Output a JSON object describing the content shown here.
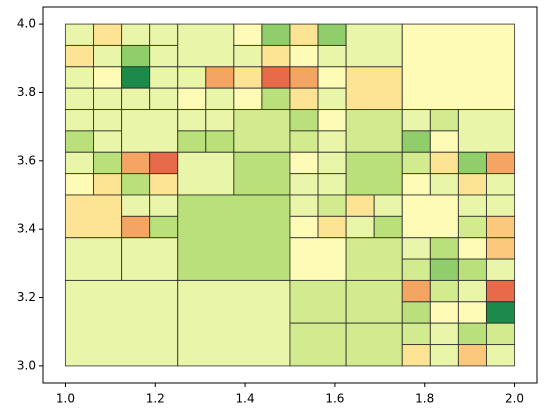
{
  "chart_data": {
    "type": "quadtree",
    "xlim": [
      0.95,
      2.05
    ],
    "ylim": [
      2.95,
      4.05
    ],
    "xticks": [
      {
        "value": 1.0,
        "label": "1.0"
      },
      {
        "value": 1.2,
        "label": "1.2"
      },
      {
        "value": 1.4,
        "label": "1.4"
      },
      {
        "value": 1.6,
        "label": "1.6"
      },
      {
        "value": 1.8,
        "label": "1.8"
      },
      {
        "value": 2.0,
        "label": "2.0"
      }
    ],
    "yticks": [
      {
        "value": 3.0,
        "label": "3.0"
      },
      {
        "value": 3.2,
        "label": "3.2"
      },
      {
        "value": 3.4,
        "label": "3.4"
      },
      {
        "value": 3.6,
        "label": "3.6"
      },
      {
        "value": 3.8,
        "label": "3.8"
      },
      {
        "value": 4.0,
        "label": "4.0"
      }
    ],
    "cells": [
      [
        1,
        3.9375,
        0.0625,
        "#e9f5a9"
      ],
      [
        1.0625,
        3.9375,
        0.0625,
        "#fde495"
      ],
      [
        1,
        3.875,
        0.0625,
        "#fde495"
      ],
      [
        1.0625,
        3.875,
        0.0625,
        "#e9f5a9"
      ],
      [
        1.125,
        3.9375,
        0.0625,
        "#e9f5a9"
      ],
      [
        1.1875,
        3.9375,
        0.0625,
        "#e9f5a9"
      ],
      [
        1.125,
        3.875,
        0.0625,
        "#8fce6b"
      ],
      [
        1.1875,
        3.875,
        0.0625,
        "#e9f5a9"
      ],
      [
        1,
        3.8125,
        0.0625,
        "#e9f5a9"
      ],
      [
        1.0625,
        3.8125,
        0.0625,
        "#fefbb6"
      ],
      [
        1,
        3.75,
        0.0625,
        "#e9f5a9"
      ],
      [
        1.0625,
        3.75,
        0.0625,
        "#e9f5a9"
      ],
      [
        1.125,
        3.8125,
        0.0625,
        "#1b8a4b"
      ],
      [
        1.1875,
        3.8125,
        0.0625,
        "#e9f5a9"
      ],
      [
        1.125,
        3.75,
        0.0625,
        "#e9f5a9"
      ],
      [
        1.1875,
        3.75,
        0.0625,
        "#e9f5a9"
      ],
      [
        1.25,
        3.875,
        0.125,
        "#e9f5a9"
      ],
      [
        1.375,
        3.9375,
        0.0625,
        "#fefbb6"
      ],
      [
        1.4375,
        3.9375,
        0.0625,
        "#8fce6b"
      ],
      [
        1.375,
        3.875,
        0.0625,
        "#e9f5a9"
      ],
      [
        1.4375,
        3.875,
        0.0625,
        "#fde495"
      ],
      [
        1.25,
        3.8125,
        0.0625,
        "#e9f5a9"
      ],
      [
        1.3125,
        3.8125,
        0.0625,
        "#f4a463"
      ],
      [
        1.25,
        3.75,
        0.0625,
        "#fefbb6"
      ],
      [
        1.3125,
        3.75,
        0.0625,
        "#e9f5a9"
      ],
      [
        1.375,
        3.8125,
        0.0625,
        "#fde495"
      ],
      [
        1.4375,
        3.8125,
        0.0625,
        "#e76b4b"
      ],
      [
        1.375,
        3.75,
        0.0625,
        "#fefbb6"
      ],
      [
        1.4375,
        3.75,
        0.0625,
        "#b9e07b"
      ],
      [
        1.5,
        3.9375,
        0.0625,
        "#fde495"
      ],
      [
        1.5625,
        3.9375,
        0.0625,
        "#8fce6b"
      ],
      [
        1.5,
        3.875,
        0.0625,
        "#fefbb6"
      ],
      [
        1.5625,
        3.875,
        0.0625,
        "#e9f5a9"
      ],
      [
        1.625,
        3.875,
        0.125,
        "#e9f5a9"
      ],
      [
        1.5,
        3.8125,
        0.0625,
        "#f4a463"
      ],
      [
        1.5625,
        3.8125,
        0.0625,
        "#fefbb6"
      ],
      [
        1.5,
        3.75,
        0.0625,
        "#fde495"
      ],
      [
        1.5625,
        3.75,
        0.0625,
        "#e9f5a9"
      ],
      [
        1.625,
        3.75,
        0.125,
        "#fde495"
      ],
      [
        1.75,
        3.75,
        0.25,
        "#fefbb6"
      ],
      [
        1,
        3.6875,
        0.0625,
        "#e9f5a9"
      ],
      [
        1.0625,
        3.6875,
        0.0625,
        "#e9f5a9"
      ],
      [
        1,
        3.625,
        0.0625,
        "#b9e07b"
      ],
      [
        1.0625,
        3.625,
        0.0625,
        "#e9f5a9"
      ],
      [
        1.125,
        3.625,
        0.125,
        "#e9f5a9"
      ],
      [
        1,
        3.5625,
        0.0625,
        "#e9f5a9"
      ],
      [
        1.0625,
        3.5625,
        0.0625,
        "#b9e07b"
      ],
      [
        1,
        3.5,
        0.0625,
        "#fefbb6"
      ],
      [
        1.0625,
        3.5,
        0.0625,
        "#fde495"
      ],
      [
        1.125,
        3.5625,
        0.0625,
        "#f4a463"
      ],
      [
        1.1875,
        3.5625,
        0.0625,
        "#e76b4b"
      ],
      [
        1.125,
        3.5,
        0.0625,
        "#b9e07b"
      ],
      [
        1.1875,
        3.5,
        0.0625,
        "#fde495"
      ],
      [
        1.25,
        3.6875,
        0.0625,
        "#e9f5a9"
      ],
      [
        1.3125,
        3.6875,
        0.0625,
        "#e9f5a9"
      ],
      [
        1.25,
        3.625,
        0.0625,
        "#b9e07b"
      ],
      [
        1.3125,
        3.625,
        0.0625,
        "#b9e07b"
      ],
      [
        1.375,
        3.625,
        0.125,
        "#d2eb8e"
      ],
      [
        1.25,
        3.5,
        0.125,
        "#e9f5a9"
      ],
      [
        1.375,
        3.5,
        0.125,
        "#b9e07b"
      ],
      [
        1.5,
        3.6875,
        0.0625,
        "#b9e07b"
      ],
      [
        1.5625,
        3.6875,
        0.0625,
        "#fefbb6"
      ],
      [
        1.5,
        3.625,
        0.0625,
        "#d2eb8e"
      ],
      [
        1.5625,
        3.625,
        0.0625,
        "#e9f5a9"
      ],
      [
        1.625,
        3.625,
        0.125,
        "#d2eb8e"
      ],
      [
        1.5,
        3.5625,
        0.0625,
        "#fefbb6"
      ],
      [
        1.5625,
        3.5625,
        0.0625,
        "#e9f5a9"
      ],
      [
        1.5,
        3.5,
        0.0625,
        "#e9f5a9"
      ],
      [
        1.5625,
        3.5,
        0.0625,
        "#e9f5a9"
      ],
      [
        1.625,
        3.5,
        0.125,
        "#b9e07b"
      ],
      [
        1.75,
        3.6875,
        0.0625,
        "#e9f5a9"
      ],
      [
        1.8125,
        3.6875,
        0.0625,
        "#d2eb8e"
      ],
      [
        1.75,
        3.625,
        0.0625,
        "#8fce6b"
      ],
      [
        1.8125,
        3.625,
        0.0625,
        "#fefbb6"
      ],
      [
        1.875,
        3.625,
        0.125,
        "#e9f5a9"
      ],
      [
        1.75,
        3.5625,
        0.0625,
        "#d2eb8e"
      ],
      [
        1.8125,
        3.5625,
        0.0625,
        "#fde495"
      ],
      [
        1.75,
        3.5,
        0.0625,
        "#fefbb6"
      ],
      [
        1.8125,
        3.5,
        0.0625,
        "#e9f5a9"
      ],
      [
        1.875,
        3.5625,
        0.0625,
        "#8fce6b"
      ],
      [
        1.9375,
        3.5625,
        0.0625,
        "#f4a463"
      ],
      [
        1.875,
        3.5,
        0.0625,
        "#fde495"
      ],
      [
        1.9375,
        3.5,
        0.0625,
        "#e9f5a9"
      ],
      [
        1,
        3.375,
        0.125,
        "#fde495"
      ],
      [
        1.125,
        3.4375,
        0.0625,
        "#e9f5a9"
      ],
      [
        1.1875,
        3.4375,
        0.0625,
        "#e9f5a9"
      ],
      [
        1.125,
        3.375,
        0.0625,
        "#f4a463"
      ],
      [
        1.1875,
        3.375,
        0.0625,
        "#b9e07b"
      ],
      [
        1,
        3.25,
        0.125,
        "#e9f5a9"
      ],
      [
        1.125,
        3.25,
        0.125,
        "#e9f5a9"
      ],
      [
        1.25,
        3.25,
        0.25,
        "#b9e07b"
      ],
      [
        1.5,
        3.4375,
        0.0625,
        "#e9f5a9"
      ],
      [
        1.5625,
        3.4375,
        0.0625,
        "#d2eb8e"
      ],
      [
        1.5,
        3.375,
        0.0625,
        "#fefbb6"
      ],
      [
        1.5625,
        3.375,
        0.0625,
        "#fde495"
      ],
      [
        1.625,
        3.4375,
        0.0625,
        "#fde495"
      ],
      [
        1.6875,
        3.4375,
        0.0625,
        "#e9f5a9"
      ],
      [
        1.625,
        3.375,
        0.0625,
        "#e9f5a9"
      ],
      [
        1.6875,
        3.375,
        0.0625,
        "#b9e07b"
      ],
      [
        1.5,
        3.25,
        0.125,
        "#fefbb6"
      ],
      [
        1.625,
        3.25,
        0.125,
        "#d2eb8e"
      ],
      [
        1.75,
        3.375,
        0.125,
        "#fefbb6"
      ],
      [
        1.875,
        3.4375,
        0.0625,
        "#e9f5a9"
      ],
      [
        1.9375,
        3.4375,
        0.0625,
        "#e9f5a9"
      ],
      [
        1.875,
        3.375,
        0.0625,
        "#d2eb8e"
      ],
      [
        1.9375,
        3.375,
        0.0625,
        "#fcc97c"
      ],
      [
        1.75,
        3.3125,
        0.0625,
        "#e9f5a9"
      ],
      [
        1.8125,
        3.3125,
        0.0625,
        "#b9e07b"
      ],
      [
        1.75,
        3.25,
        0.0625,
        "#d2eb8e"
      ],
      [
        1.8125,
        3.25,
        0.0625,
        "#8fce6b"
      ],
      [
        1.875,
        3.3125,
        0.0625,
        "#fefbb6"
      ],
      [
        1.9375,
        3.3125,
        0.0625,
        "#fcc97c"
      ],
      [
        1.875,
        3.25,
        0.0625,
        "#b9e07b"
      ],
      [
        1.9375,
        3.25,
        0.0625,
        "#e9f5a9"
      ],
      [
        1,
        3,
        0.25,
        "#e9f5a9"
      ],
      [
        1.25,
        3,
        0.25,
        "#e9f5a9"
      ],
      [
        1.5,
        3.125,
        0.125,
        "#d2eb8e"
      ],
      [
        1.625,
        3.125,
        0.125,
        "#d2eb8e"
      ],
      [
        1.5,
        3,
        0.125,
        "#d2eb8e"
      ],
      [
        1.625,
        3,
        0.125,
        "#d2eb8e"
      ],
      [
        1.75,
        3.1875,
        0.0625,
        "#f4a463"
      ],
      [
        1.8125,
        3.1875,
        0.0625,
        "#d2eb8e"
      ],
      [
        1.75,
        3.125,
        0.0625,
        "#b9e07b"
      ],
      [
        1.8125,
        3.125,
        0.0625,
        "#fefbb6"
      ],
      [
        1.875,
        3.1875,
        0.0625,
        "#e9f5a9"
      ],
      [
        1.9375,
        3.1875,
        0.0625,
        "#e76b4b"
      ],
      [
        1.875,
        3.125,
        0.0625,
        "#fefbb6"
      ],
      [
        1.9375,
        3.125,
        0.0625,
        "#1b8a4b"
      ],
      [
        1.75,
        3.0625,
        0.0625,
        "#d2eb8e"
      ],
      [
        1.8125,
        3.0625,
        0.0625,
        "#e9f5a9"
      ],
      [
        1.75,
        3,
        0.0625,
        "#fde495"
      ],
      [
        1.8125,
        3,
        0.0625,
        "#e9f5a9"
      ],
      [
        1.875,
        3.0625,
        0.0625,
        "#b9e07b"
      ],
      [
        1.9375,
        3.0625,
        0.0625,
        "#d2eb8e"
      ],
      [
        1.875,
        3,
        0.0625,
        "#fcc97c"
      ],
      [
        1.9375,
        3,
        0.0625,
        "#e9f5a9"
      ]
    ]
  }
}
